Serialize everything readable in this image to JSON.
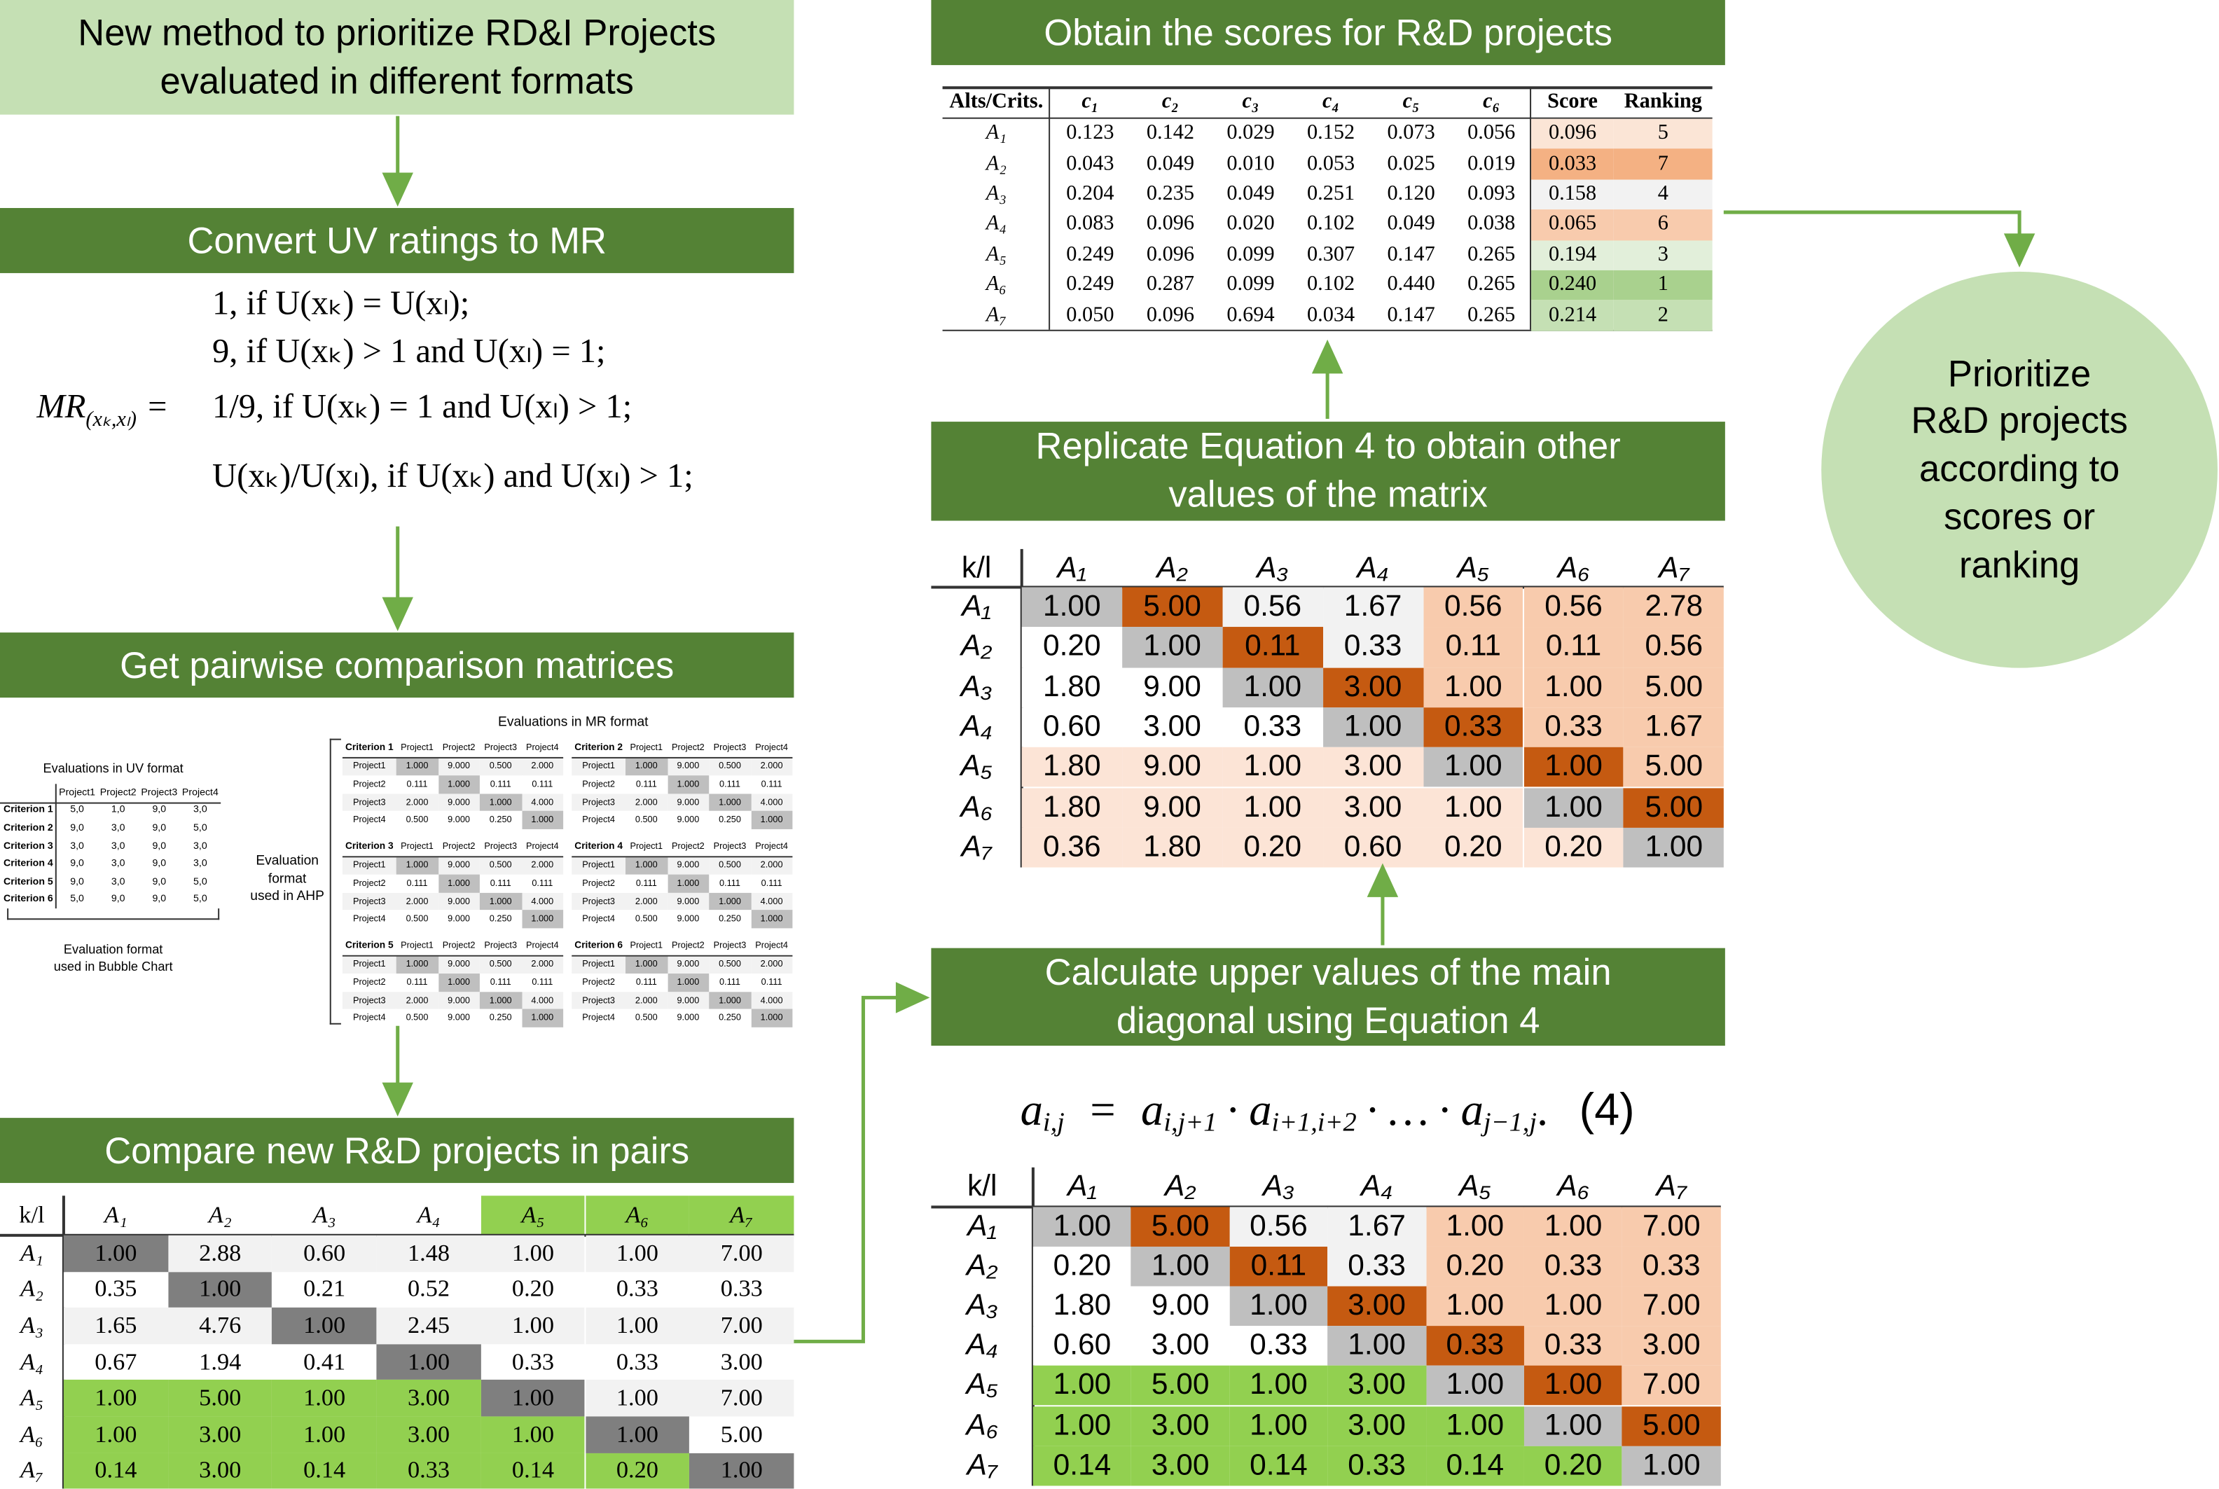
{
  "start_box": [
    "New method to prioritize RD&I Projects",
    "evaluated in different formats"
  ],
  "convert_box": "Convert UV ratings to MR",
  "formula": {
    "lhs": "MR",
    "lhs_sub": "(xₖ,xₗ)",
    "equals": "=",
    "cases": [
      "1, if U(xₖ) = U(xₗ);",
      "9, if U(xₖ) > 1 and U(xₗ) = 1;",
      "1/9, if U(xₖ) = 1 and U(xₗ) > 1;",
      "U(xₖ)/U(xₗ), if U(xₖ) and U(xₗ) > 1;"
    ]
  },
  "pairwise_box": "Get pairwise comparison matrices",
  "uv_table": {
    "title": "Evaluations in UV format",
    "columns": [
      "Project1",
      "Project2",
      "Project3",
      "Project4"
    ],
    "rows": [
      [
        "Criterion 1",
        "5,0",
        "1,0",
        "9,0",
        "3,0"
      ],
      [
        "Criterion 2",
        "9,0",
        "3,0",
        "9,0",
        "5,0"
      ],
      [
        "Criterion 3",
        "3,0",
        "3,0",
        "9,0",
        "3,0"
      ],
      [
        "Criterion 4",
        "9,0",
        "3,0",
        "9,0",
        "3,0"
      ],
      [
        "Criterion 5",
        "9,0",
        "3,0",
        "9,0",
        "5,0"
      ],
      [
        "Criterion 6",
        "5,0",
        "9,0",
        "9,0",
        "5,0"
      ]
    ],
    "caption": [
      "Evaluation format",
      "used in Bubble Chart"
    ]
  },
  "ahp": {
    "title": "Evaluations in MR format",
    "side_label": [
      "Evaluation",
      "format",
      "used in AHP"
    ],
    "matrices": [
      {
        "name": "Criterion 1",
        "columns": [
          "Project1",
          "Project2",
          "Project3",
          "Project4"
        ],
        "rows": [
          [
            "Project1",
            "1.000",
            "9.000",
            "0.500",
            "2.000"
          ],
          [
            "Project2",
            "0.111",
            "1.000",
            "0.111",
            "0.111"
          ],
          [
            "Project3",
            "2.000",
            "9.000",
            "1.000",
            "4.000"
          ],
          [
            "Project4",
            "0.500",
            "9.000",
            "0.250",
            "1.000"
          ]
        ]
      },
      {
        "name": "Criterion 2",
        "columns": [
          "Project1",
          "Project2",
          "Project3",
          "Project4"
        ],
        "rows": [
          [
            "Project1",
            "1.000",
            "9.000",
            "0.500",
            "2.000"
          ],
          [
            "Project2",
            "0.111",
            "1.000",
            "0.111",
            "0.111"
          ],
          [
            "Project3",
            "2.000",
            "9.000",
            "1.000",
            "4.000"
          ],
          [
            "Project4",
            "0.500",
            "9.000",
            "0.250",
            "1.000"
          ]
        ]
      },
      {
        "name": "Criterion 3",
        "columns": [
          "Project1",
          "Project2",
          "Project3",
          "Project4"
        ],
        "rows": [
          [
            "Project1",
            "1.000",
            "9.000",
            "0.500",
            "2.000"
          ],
          [
            "Project2",
            "0.111",
            "1.000",
            "0.111",
            "0.111"
          ],
          [
            "Project3",
            "2.000",
            "9.000",
            "1.000",
            "4.000"
          ],
          [
            "Project4",
            "0.500",
            "9.000",
            "0.250",
            "1.000"
          ]
        ]
      },
      {
        "name": "Criterion 4",
        "columns": [
          "Project1",
          "Project2",
          "Project3",
          "Project4"
        ],
        "rows": [
          [
            "Project1",
            "1.000",
            "9.000",
            "0.500",
            "2.000"
          ],
          [
            "Project2",
            "0.111",
            "1.000",
            "0.111",
            "0.111"
          ],
          [
            "Project3",
            "2.000",
            "9.000",
            "1.000",
            "4.000"
          ],
          [
            "Project4",
            "0.500",
            "9.000",
            "0.250",
            "1.000"
          ]
        ]
      },
      {
        "name": "Criterion 5",
        "columns": [
          "Project1",
          "Project2",
          "Project3",
          "Project4"
        ],
        "rows": [
          [
            "Project1",
            "1.000",
            "9.000",
            "0.500",
            "2.000"
          ],
          [
            "Project2",
            "0.111",
            "1.000",
            "0.111",
            "0.111"
          ],
          [
            "Project3",
            "2.000",
            "9.000",
            "1.000",
            "4.000"
          ],
          [
            "Project4",
            "0.500",
            "9.000",
            "0.250",
            "1.000"
          ]
        ]
      },
      {
        "name": "Criterion 6",
        "columns": [
          "Project1",
          "Project2",
          "Project3",
          "Project4"
        ],
        "rows": [
          [
            "Project1",
            "1.000",
            "9.000",
            "0.500",
            "2.000"
          ],
          [
            "Project2",
            "0.111",
            "1.000",
            "0.111",
            "0.111"
          ],
          [
            "Project3",
            "2.000",
            "9.000",
            "1.000",
            "4.000"
          ],
          [
            "Project4",
            "0.500",
            "9.000",
            "0.250",
            "1.000"
          ]
        ]
      }
    ]
  },
  "compare_box": "Compare new R&D projects in pairs",
  "compare_table": {
    "corner": "k/l",
    "columns": [
      "A₁",
      "A₂",
      "A₃",
      "A₄",
      "A₅",
      "A₆",
      "A₇"
    ],
    "rows": [
      [
        "A₁",
        "1.00",
        "2.88",
        "0.60",
        "1.48",
        "1.00",
        "1.00",
        "7.00"
      ],
      [
        "A₂",
        "0.35",
        "1.00",
        "0.21",
        "0.52",
        "0.20",
        "0.33",
        "0.33"
      ],
      [
        "A₃",
        "1.65",
        "4.76",
        "1.00",
        "2.45",
        "1.00",
        "1.00",
        "7.00"
      ],
      [
        "A₄",
        "0.67",
        "1.94",
        "0.41",
        "1.00",
        "0.33",
        "0.33",
        "3.00"
      ],
      [
        "A₅",
        "1.00",
        "5.00",
        "1.00",
        "3.00",
        "1.00",
        "1.00",
        "7.00"
      ],
      [
        "A₆",
        "1.00",
        "3.00",
        "1.00",
        "3.00",
        "1.00",
        "1.00",
        "5.00"
      ],
      [
        "A₇",
        "0.14",
        "3.00",
        "0.14",
        "0.33",
        "0.14",
        "0.20",
        "1.00"
      ]
    ]
  },
  "scores_box": "Obtain the scores for R&D projects",
  "score_table": {
    "columns": [
      "Alts/Crits.",
      "c₁",
      "c₂",
      "c₃",
      "c₄",
      "c₅",
      "c₆",
      "Score",
      "Ranking"
    ],
    "rows": [
      [
        "A₁",
        "0.123",
        "0.142",
        "0.029",
        "0.152",
        "0.073",
        "0.056",
        "0.096",
        "5"
      ],
      [
        "A₂",
        "0.043",
        "0.049",
        "0.010",
        "0.053",
        "0.025",
        "0.019",
        "0.033",
        "7"
      ],
      [
        "A₃",
        "0.204",
        "0.235",
        "0.049",
        "0.251",
        "0.120",
        "0.093",
        "0.158",
        "4"
      ],
      [
        "A₄",
        "0.083",
        "0.096",
        "0.020",
        "0.102",
        "0.049",
        "0.038",
        "0.065",
        "6"
      ],
      [
        "A₅",
        "0.249",
        "0.096",
        "0.099",
        "0.307",
        "0.147",
        "0.265",
        "0.194",
        "3"
      ],
      [
        "A₆",
        "0.249",
        "0.287",
        "0.099",
        "0.102",
        "0.440",
        "0.265",
        "0.240",
        "1"
      ],
      [
        "A₇",
        "0.050",
        "0.096",
        "0.694",
        "0.034",
        "0.147",
        "0.265",
        "0.214",
        "2"
      ]
    ],
    "score_colors": [
      "#fbe5d6",
      "#f4b183",
      "#f2f2f2",
      "#f8cbad",
      "#e2efda",
      "#a9d18e",
      "#c5e0b4"
    ]
  },
  "replicate_box": [
    "Replicate Equation 4 to obtain other",
    "values of the matrix"
  ],
  "replicate_matrix": {
    "corner": "k/l",
    "columns": [
      "A₁",
      "A₂",
      "A₃",
      "A₄",
      "A₅",
      "A₆",
      "A₇"
    ],
    "rows": [
      [
        "A₁",
        "1.00",
        "5.00",
        "0.56",
        "1.67",
        "0.56",
        "0.56",
        "2.78"
      ],
      [
        "A₂",
        "0.20",
        "1.00",
        "0.11",
        "0.33",
        "0.11",
        "0.11",
        "0.56"
      ],
      [
        "A₃",
        "1.80",
        "9.00",
        "1.00",
        "3.00",
        "1.00",
        "1.00",
        "5.00"
      ],
      [
        "A₄",
        "0.60",
        "3.00",
        "0.33",
        "1.00",
        "0.33",
        "0.33",
        "1.67"
      ],
      [
        "A₅",
        "1.80",
        "9.00",
        "1.00",
        "3.00",
        "1.00",
        "1.00",
        "5.00"
      ],
      [
        "A₆",
        "1.80",
        "9.00",
        "1.00",
        "3.00",
        "1.00",
        "1.00",
        "5.00"
      ],
      [
        "A₇",
        "0.36",
        "1.80",
        "0.20",
        "0.60",
        "0.20",
        "0.20",
        "1.00"
      ]
    ]
  },
  "calculate_box": [
    "Calculate upper values of the main",
    "diagonal using Equation 4"
  ],
  "equation": {
    "lhs": {
      "base": "a",
      "sub": "i,j"
    },
    "op": "=",
    "separator": "·",
    "factors": [
      {
        "base": "a",
        "sub": "i,j+1"
      },
      {
        "base": "a",
        "sub": "i+1,i+2"
      },
      {
        "base": "…"
      },
      {
        "base": "a",
        "sub": "j−1,j"
      }
    ],
    "end": ".",
    "number": "(4)"
  },
  "final_matrix": {
    "corner": "k/l",
    "columns": [
      "A₁",
      "A₂",
      "A₃",
      "A₄",
      "A₅",
      "A₆",
      "A₇"
    ],
    "rows": [
      [
        "A₁",
        "1.00",
        "5.00",
        "0.56",
        "1.67",
        "1.00",
        "1.00",
        "7.00"
      ],
      [
        "A₂",
        "0.20",
        "1.00",
        "0.11",
        "0.33",
        "0.20",
        "0.33",
        "0.33"
      ],
      [
        "A₃",
        "1.80",
        "9.00",
        "1.00",
        "3.00",
        "1.00",
        "1.00",
        "7.00"
      ],
      [
        "A₄",
        "0.60",
        "3.00",
        "0.33",
        "1.00",
        "0.33",
        "0.33",
        "3.00"
      ],
      [
        "A₅",
        "1.00",
        "5.00",
        "1.00",
        "3.00",
        "1.00",
        "1.00",
        "7.00"
      ],
      [
        "A₆",
        "1.00",
        "3.00",
        "1.00",
        "3.00",
        "1.00",
        "1.00",
        "5.00"
      ],
      [
        "A₇",
        "0.14",
        "3.00",
        "0.14",
        "0.33",
        "0.14",
        "0.20",
        "1.00"
      ]
    ]
  },
  "result_circle": [
    "Prioritize",
    "R&D projects",
    "according to",
    "scores or",
    "ranking"
  ]
}
